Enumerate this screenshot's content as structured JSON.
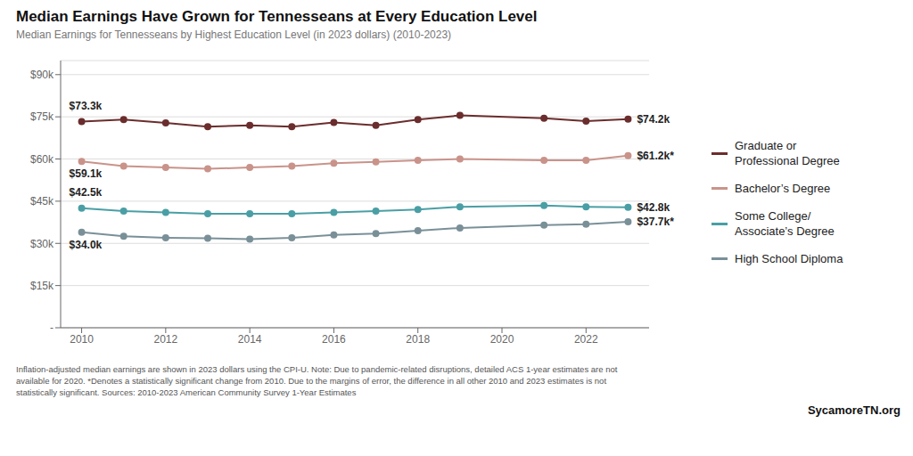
{
  "chart_data": {
    "type": "line",
    "title": "Median Earnings Have Grown for Tennesseans at Every Education Level",
    "subtitle": "Median Earnings for Tennesseans by Highest Education Level (in 2023 dollars) (2010-2023)",
    "annotations": [
      "Inflation-adjusted median earnings are shown in 2023 dollars using the CPI-U. Note: Due to pandemic-related disruptions, detailed ACS 1-year estimates are not\navailable for 2020. *Denotes a statistically significant change from 2010. Due to the margins of error, the difference in all other 2010 and 2023 estimates is not\nstatistically significant. Sources: 2010-2023 American Community Survey 1-Year Estimates",
      "SycamoreTN.org"
    ],
    "x": [
      2010,
      2011,
      2012,
      2013,
      2014,
      2015,
      2016,
      2017,
      2018,
      2019,
      2021,
      2022,
      2023
    ],
    "series": [
      {
        "name": "Graduate or\nProfessional Degree",
        "color": "#6b2d2d",
        "values": [
          73300,
          74000,
          72800,
          71500,
          72000,
          71500,
          73000,
          72000,
          74000,
          75500,
          74500,
          73500,
          74200
        ],
        "value_labels": [
          "$73.3k",
          null,
          null,
          null,
          null,
          null,
          null,
          null,
          null,
          null,
          null,
          null,
          "$74.2k"
        ]
      },
      {
        "name": "Bachelor’s Degree",
        "color": "#c9938a",
        "values": [
          59100,
          57500,
          57000,
          56500,
          57000,
          57500,
          58500,
          59000,
          59500,
          60000,
          59500,
          59500,
          61200
        ],
        "value_labels": [
          "$59.1k",
          null,
          null,
          null,
          null,
          null,
          null,
          null,
          null,
          null,
          null,
          null,
          "$61.2k*"
        ]
      },
      {
        "name": "Some College/\nAssociate’s Degree",
        "color": "#4a9fa5",
        "values": [
          42500,
          41500,
          41000,
          40500,
          40500,
          40500,
          41000,
          41500,
          42000,
          43000,
          43500,
          43000,
          42800
        ],
        "value_labels": [
          "$42.5k",
          null,
          null,
          null,
          null,
          null,
          null,
          null,
          null,
          null,
          null,
          null,
          "$42.8k"
        ]
      },
      {
        "name": "High School Diploma",
        "color": "#7a9098",
        "values": [
          34000,
          32500,
          32000,
          31800,
          31500,
          32000,
          33000,
          33500,
          34500,
          35500,
          36500,
          36800,
          37700
        ],
        "value_labels": [
          "$34.0k",
          null,
          null,
          null,
          null,
          null,
          null,
          null,
          null,
          null,
          null,
          null,
          "$37.7k*"
        ]
      }
    ],
    "xlim": [
      2009.5,
      2023.5
    ],
    "xticks": [
      2010,
      2012,
      2014,
      2016,
      2018,
      2020,
      2022
    ],
    "ylim": [
      0,
      95000
    ],
    "yticks": [
      {
        "value": 0,
        "label": "-"
      },
      {
        "value": 15000,
        "label": "$15k"
      },
      {
        "value": 30000,
        "label": "$30k"
      },
      {
        "value": 45000,
        "label": "$45k"
      },
      {
        "value": 60000,
        "label": "$60k"
      },
      {
        "value": 75000,
        "label": "$75k"
      },
      {
        "value": 90000,
        "label": "$90k"
      }
    ],
    "grid": true,
    "marker": "circle",
    "legend": "right"
  }
}
